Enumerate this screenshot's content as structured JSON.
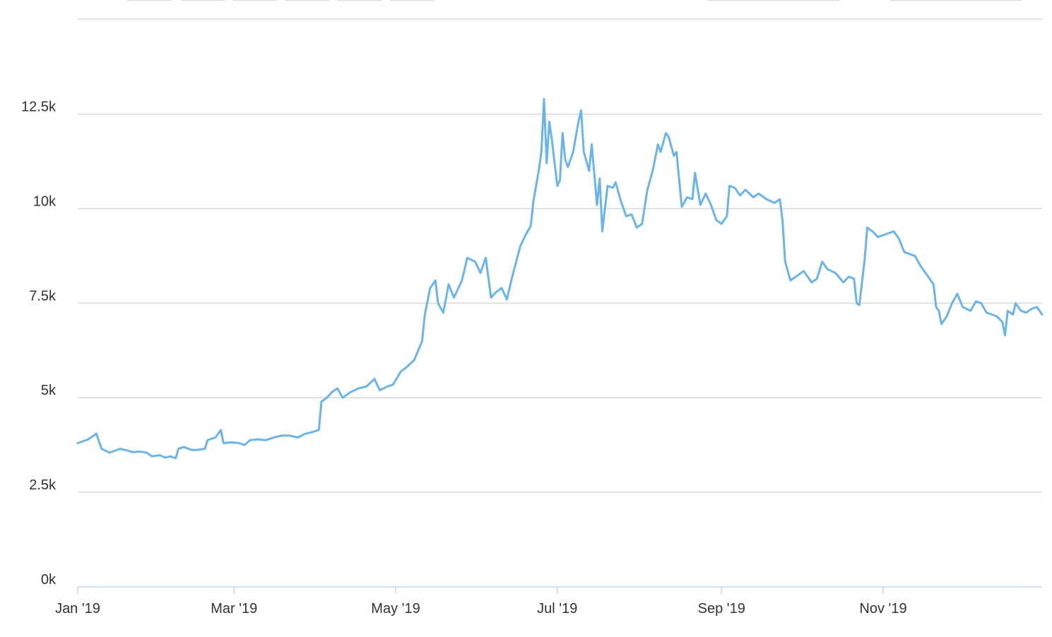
{
  "colors": {
    "line": "#6bb4ea",
    "grid": "#d8d8d8",
    "axis": "#c8d3e6",
    "text": "#333333"
  },
  "chart_data": {
    "type": "line",
    "title": "",
    "xlabel": "",
    "ylabel": "",
    "grid": true,
    "legend": "none",
    "ylim": [
      0,
      13000
    ],
    "yticks": [
      0,
      2500,
      5000,
      7500,
      10000,
      12500
    ],
    "ytick_labels": [
      "0k",
      "2.5k",
      "5k",
      "7.5k",
      "10k",
      "12.5k"
    ],
    "xlim": [
      "2019-01-01",
      "2019-12-31"
    ],
    "xticks": [
      "2019-01-01",
      "2019-03-01",
      "2019-05-01",
      "2019-07-01",
      "2019-09-01",
      "2019-11-01"
    ],
    "xtick_labels": [
      "Jan '19",
      "Mar '19",
      "May '19",
      "Jul '19",
      "Sep '19",
      "Nov '19"
    ],
    "series": [
      {
        "points": [
          [
            "2019-01-01",
            3800
          ],
          [
            "2019-01-03",
            3850
          ],
          [
            "2019-01-05",
            3900
          ],
          [
            "2019-01-08",
            4050
          ],
          [
            "2019-01-10",
            3650
          ],
          [
            "2019-01-13",
            3550
          ],
          [
            "2019-01-15",
            3600
          ],
          [
            "2019-01-17",
            3650
          ],
          [
            "2019-01-20",
            3600
          ],
          [
            "2019-01-22",
            3560
          ],
          [
            "2019-01-24",
            3580
          ],
          [
            "2019-01-27",
            3550
          ],
          [
            "2019-01-29",
            3450
          ],
          [
            "2019-02-01",
            3480
          ],
          [
            "2019-02-03",
            3420
          ],
          [
            "2019-02-05",
            3450
          ],
          [
            "2019-02-07",
            3400
          ],
          [
            "2019-02-08",
            3650
          ],
          [
            "2019-02-10",
            3700
          ],
          [
            "2019-02-13",
            3620
          ],
          [
            "2019-02-15",
            3620
          ],
          [
            "2019-02-18",
            3650
          ],
          [
            "2019-02-19",
            3880
          ],
          [
            "2019-02-22",
            3950
          ],
          [
            "2019-02-24",
            4150
          ],
          [
            "2019-02-25",
            3800
          ],
          [
            "2019-02-28",
            3820
          ],
          [
            "2019-03-03",
            3800
          ],
          [
            "2019-03-05",
            3750
          ],
          [
            "2019-03-07",
            3880
          ],
          [
            "2019-03-10",
            3900
          ],
          [
            "2019-03-13",
            3880
          ],
          [
            "2019-03-16",
            3950
          ],
          [
            "2019-03-19",
            4000
          ],
          [
            "2019-03-22",
            4000
          ],
          [
            "2019-03-25",
            3950
          ],
          [
            "2019-03-28",
            4050
          ],
          [
            "2019-03-31",
            4100
          ],
          [
            "2019-04-02",
            4150
          ],
          [
            "2019-04-03",
            4900
          ],
          [
            "2019-04-05",
            5000
          ],
          [
            "2019-04-07",
            5150
          ],
          [
            "2019-04-09",
            5250
          ],
          [
            "2019-04-11",
            5000
          ],
          [
            "2019-04-14",
            5150
          ],
          [
            "2019-04-17",
            5250
          ],
          [
            "2019-04-20",
            5300
          ],
          [
            "2019-04-23",
            5500
          ],
          [
            "2019-04-25",
            5200
          ],
          [
            "2019-04-28",
            5300
          ],
          [
            "2019-04-30",
            5350
          ],
          [
            "2019-05-03",
            5700
          ],
          [
            "2019-05-05",
            5800
          ],
          [
            "2019-05-08",
            6000
          ],
          [
            "2019-05-11",
            6500
          ],
          [
            "2019-05-12",
            7200
          ],
          [
            "2019-05-14",
            7900
          ],
          [
            "2019-05-16",
            8100
          ],
          [
            "2019-05-17",
            7500
          ],
          [
            "2019-05-19",
            7250
          ],
          [
            "2019-05-21",
            8000
          ],
          [
            "2019-05-23",
            7650
          ],
          [
            "2019-05-26",
            8100
          ],
          [
            "2019-05-28",
            8700
          ],
          [
            "2019-05-31",
            8600
          ],
          [
            "2019-06-02",
            8300
          ],
          [
            "2019-06-04",
            8700
          ],
          [
            "2019-06-06",
            7650
          ],
          [
            "2019-06-08",
            7800
          ],
          [
            "2019-06-10",
            7900
          ],
          [
            "2019-06-12",
            7600
          ],
          [
            "2019-06-14",
            8200
          ],
          [
            "2019-06-17",
            9000
          ],
          [
            "2019-06-19",
            9300
          ],
          [
            "2019-06-21",
            9550
          ],
          [
            "2019-06-22",
            10200
          ],
          [
            "2019-06-24",
            11000
          ],
          [
            "2019-06-25",
            11500
          ],
          [
            "2019-06-26",
            12900
          ],
          [
            "2019-06-27",
            11200
          ],
          [
            "2019-06-28",
            12300
          ],
          [
            "2019-06-29",
            11800
          ],
          [
            "2019-07-01",
            10600
          ],
          [
            "2019-07-02",
            10750
          ],
          [
            "2019-07-03",
            12000
          ],
          [
            "2019-07-04",
            11300
          ],
          [
            "2019-07-05",
            11100
          ],
          [
            "2019-07-07",
            11500
          ],
          [
            "2019-07-09",
            12300
          ],
          [
            "2019-07-10",
            12600
          ],
          [
            "2019-07-11",
            11500
          ],
          [
            "2019-07-13",
            11000
          ],
          [
            "2019-07-14",
            11700
          ],
          [
            "2019-07-16",
            10100
          ],
          [
            "2019-07-17",
            10800
          ],
          [
            "2019-07-18",
            9400
          ],
          [
            "2019-07-20",
            10600
          ],
          [
            "2019-07-22",
            10550
          ],
          [
            "2019-07-23",
            10700
          ],
          [
            "2019-07-25",
            10200
          ],
          [
            "2019-07-27",
            9800
          ],
          [
            "2019-07-29",
            9850
          ],
          [
            "2019-07-31",
            9500
          ],
          [
            "2019-08-02",
            9600
          ],
          [
            "2019-08-04",
            10500
          ],
          [
            "2019-08-06",
            11000
          ],
          [
            "2019-08-08",
            11700
          ],
          [
            "2019-08-09",
            11500
          ],
          [
            "2019-08-11",
            12000
          ],
          [
            "2019-08-12",
            11900
          ],
          [
            "2019-08-14",
            11400
          ],
          [
            "2019-08-15",
            11500
          ],
          [
            "2019-08-17",
            10050
          ],
          [
            "2019-08-19",
            10300
          ],
          [
            "2019-08-21",
            10250
          ],
          [
            "2019-08-22",
            10950
          ],
          [
            "2019-08-24",
            10100
          ],
          [
            "2019-08-26",
            10400
          ],
          [
            "2019-08-28",
            10100
          ],
          [
            "2019-08-30",
            9700
          ],
          [
            "2019-09-01",
            9600
          ],
          [
            "2019-09-03",
            9800
          ],
          [
            "2019-09-04",
            10600
          ],
          [
            "2019-09-06",
            10550
          ],
          [
            "2019-09-08",
            10350
          ],
          [
            "2019-09-10",
            10500
          ],
          [
            "2019-09-13",
            10300
          ],
          [
            "2019-09-15",
            10400
          ],
          [
            "2019-09-18",
            10250
          ],
          [
            "2019-09-21",
            10150
          ],
          [
            "2019-09-23",
            10250
          ],
          [
            "2019-09-24",
            9700
          ],
          [
            "2019-09-25",
            8600
          ],
          [
            "2019-09-27",
            8100
          ],
          [
            "2019-09-29",
            8200
          ],
          [
            "2019-10-02",
            8350
          ],
          [
            "2019-10-05",
            8050
          ],
          [
            "2019-10-07",
            8150
          ],
          [
            "2019-10-09",
            8600
          ],
          [
            "2019-10-11",
            8400
          ],
          [
            "2019-10-14",
            8300
          ],
          [
            "2019-10-17",
            8050
          ],
          [
            "2019-10-19",
            8200
          ],
          [
            "2019-10-21",
            8150
          ],
          [
            "2019-10-22",
            7500
          ],
          [
            "2019-10-23",
            7450
          ],
          [
            "2019-10-25",
            8650
          ],
          [
            "2019-10-26",
            9500
          ],
          [
            "2019-10-28",
            9400
          ],
          [
            "2019-10-30",
            9250
          ],
          [
            "2019-11-01",
            9300
          ],
          [
            "2019-11-03",
            9350
          ],
          [
            "2019-11-05",
            9400
          ],
          [
            "2019-11-07",
            9200
          ],
          [
            "2019-11-09",
            8850
          ],
          [
            "2019-11-11",
            8800
          ],
          [
            "2019-11-13",
            8750
          ],
          [
            "2019-11-15",
            8500
          ],
          [
            "2019-11-18",
            8200
          ],
          [
            "2019-11-20",
            8000
          ],
          [
            "2019-11-21",
            7400
          ],
          [
            "2019-11-22",
            7300
          ],
          [
            "2019-11-23",
            6950
          ],
          [
            "2019-11-25",
            7150
          ],
          [
            "2019-11-27",
            7500
          ],
          [
            "2019-11-29",
            7750
          ],
          [
            "2019-12-01",
            7400
          ],
          [
            "2019-12-04",
            7300
          ],
          [
            "2019-12-06",
            7550
          ],
          [
            "2019-12-08",
            7500
          ],
          [
            "2019-12-10",
            7250
          ],
          [
            "2019-12-12",
            7200
          ],
          [
            "2019-12-14",
            7150
          ],
          [
            "2019-12-16",
            7000
          ],
          [
            "2019-12-17",
            6650
          ],
          [
            "2019-12-18",
            7300
          ],
          [
            "2019-12-20",
            7200
          ],
          [
            "2019-12-21",
            7500
          ],
          [
            "2019-12-23",
            7300
          ],
          [
            "2019-12-25",
            7250
          ],
          [
            "2019-12-27",
            7350
          ],
          [
            "2019-12-29",
            7400
          ],
          [
            "2019-12-31",
            7200
          ]
        ]
      }
    ]
  }
}
